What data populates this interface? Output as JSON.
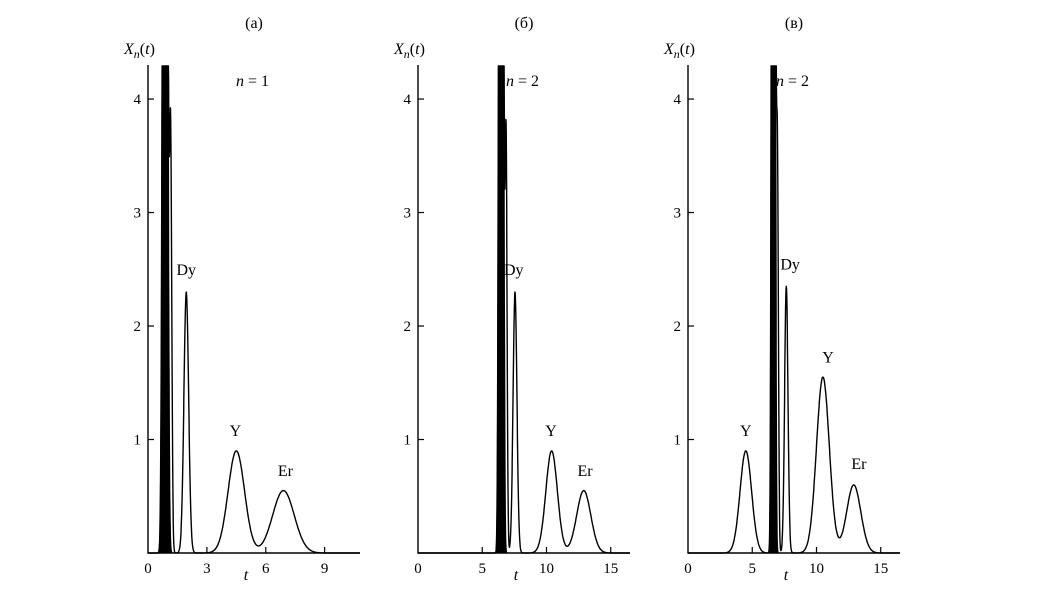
{
  "figure": {
    "background": "#ffffff",
    "line_color": "#000000"
  },
  "chart_data": [
    {
      "type": "line",
      "panel_label": "(а)",
      "annotation": {
        "var": "n",
        "rest": " = 1"
      },
      "ylabel": {
        "sym": "X",
        "sub": "n",
        "lp": "(",
        "arg": "t",
        "rp": ")"
      },
      "xlabel": "t",
      "xlim": [
        0,
        10.8
      ],
      "ylim": [
        0,
        4.3
      ],
      "xticks": [
        0,
        3,
        6,
        9
      ],
      "yticks": [
        1,
        2,
        3,
        4
      ],
      "grid": false,
      "peaks": [
        {
          "center": 0.8,
          "height": 9,
          "sigma": 0.07,
          "fill": true
        },
        {
          "center": 0.95,
          "height": 9,
          "sigma": 0.07,
          "fill": true
        },
        {
          "center": 1.15,
          "height": 3.75,
          "sigma": 0.06
        },
        {
          "name": "Dy",
          "center": 1.95,
          "height": 2.3,
          "sigma": 0.12,
          "label_x": 1.95,
          "label_y": 2.45
        },
        {
          "name": "Y",
          "center": 4.5,
          "height": 0.9,
          "sigma": 0.42,
          "label_x": 4.45,
          "label_y": 1.03
        },
        {
          "name": "Er",
          "center": 6.9,
          "height": 0.55,
          "sigma": 0.55,
          "label_x": 7.0,
          "label_y": 0.68
        }
      ]
    },
    {
      "type": "line",
      "panel_label": "(б)",
      "annotation": {
        "var": "n",
        "rest": " = 2"
      },
      "ylabel": {
        "sym": "X",
        "sub": "n",
        "lp": "(",
        "arg": "t",
        "rp": ")"
      },
      "xlabel": "t",
      "xlim": [
        0,
        16.5
      ],
      "ylim": [
        0,
        4.3
      ],
      "xticks": [
        0,
        5,
        10,
        15
      ],
      "yticks": [
        1,
        2,
        3,
        4
      ],
      "grid": false,
      "peaks": [
        {
          "center": 6.35,
          "height": 9,
          "sigma": 0.08,
          "fill": true
        },
        {
          "center": 6.6,
          "height": 9,
          "sigma": 0.08,
          "fill": true
        },
        {
          "center": 6.85,
          "height": 3.75,
          "sigma": 0.08
        },
        {
          "name": "Dy",
          "center": 7.55,
          "height": 2.3,
          "sigma": 0.15,
          "label_x": 7.45,
          "label_y": 2.45
        },
        {
          "name": "Y",
          "center": 10.4,
          "height": 0.9,
          "sigma": 0.45,
          "label_x": 10.35,
          "label_y": 1.03
        },
        {
          "name": "Er",
          "center": 12.9,
          "height": 0.55,
          "sigma": 0.55,
          "label_x": 13.0,
          "label_y": 0.68
        }
      ]
    },
    {
      "type": "line",
      "panel_label": "(в)",
      "annotation": {
        "var": "n",
        "rest": " = 2"
      },
      "ylabel": {
        "sym": "X",
        "sub": "n",
        "lp": "(",
        "arg": "t",
        "rp": ")"
      },
      "xlabel": "t",
      "xlim": [
        0,
        16.5
      ],
      "ylim": [
        0,
        4.3
      ],
      "xticks": [
        0,
        5,
        10,
        15
      ],
      "yticks": [
        1,
        2,
        3,
        4
      ],
      "grid": false,
      "peaks": [
        {
          "name": "Y",
          "center": 4.5,
          "height": 0.9,
          "sigma": 0.45,
          "label_x": 4.5,
          "label_y": 1.03
        },
        {
          "center": 6.55,
          "height": 9,
          "sigma": 0.07,
          "fill": true
        },
        {
          "center": 6.75,
          "height": 9,
          "sigma": 0.07,
          "fill": true
        },
        {
          "center": 6.95,
          "height": 3.7,
          "sigma": 0.08
        },
        {
          "name": "Dy",
          "center": 7.65,
          "height": 2.35,
          "sigma": 0.13,
          "label_x": 7.95,
          "label_y": 2.5
        },
        {
          "name": "Y",
          "center": 10.5,
          "height": 1.55,
          "sigma": 0.5,
          "label_x": 10.9,
          "label_y": 1.68
        },
        {
          "name": "Er",
          "center": 12.9,
          "height": 0.6,
          "sigma": 0.55,
          "label_x": 13.3,
          "label_y": 0.74
        }
      ]
    }
  ]
}
